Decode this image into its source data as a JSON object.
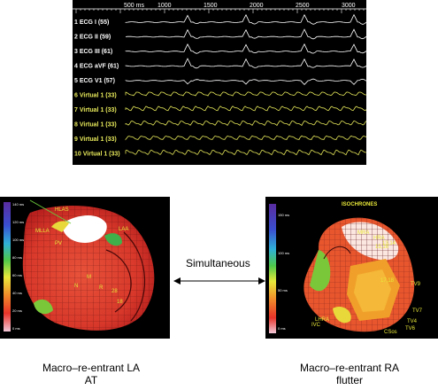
{
  "ecg_panel": {
    "time_axis": {
      "unit_label": "500 ms",
      "ticks": [
        "1000",
        "1500",
        "2000",
        "2500",
        "3000"
      ]
    },
    "channels": [
      {
        "label": "1 ECG I (55)",
        "kind": "ecg"
      },
      {
        "label": "2 ECG II (59)",
        "kind": "ecg"
      },
      {
        "label": "3 ECG III (61)",
        "kind": "ecg"
      },
      {
        "label": "4 ECG aVF (61)",
        "kind": "ecg"
      },
      {
        "label": "5 ECG V1 (57)",
        "kind": "ecg"
      },
      {
        "label": "6 Virtual 1 (33)",
        "kind": "virtual"
      },
      {
        "label": "7 Virtual 1 (33)",
        "kind": "virtual"
      },
      {
        "label": "8 Virtual 1 (33)",
        "kind": "virtual"
      },
      {
        "label": "9 Virtual 1 (33)",
        "kind": "virtual"
      },
      {
        "label": "10 Virtual 1 (33)",
        "kind": "virtual"
      }
    ],
    "colors": {
      "ecg": "#ffffff",
      "virtual": "#e6e85a",
      "ecg_label": "#ffffff",
      "virtual_label": "#e6e85a"
    }
  },
  "left_map": {
    "scale_ticks": [
      "140 ms",
      "120 ms",
      "100 ms",
      "80 ms",
      "60 ms",
      "40 ms",
      "20 ms",
      "0 ms"
    ],
    "labels": [
      "HLAS",
      "MLLA",
      "LAA",
      "PV",
      "N",
      "M",
      "R",
      "28",
      "18"
    ],
    "caption_line1": "Macro–re-entrant LA",
    "caption_line2": "AT"
  },
  "right_map": {
    "title": "ISOCHRONES",
    "scale_ticks": [
      "150 ms",
      "100 ms",
      "50 ms",
      "0 ms"
    ],
    "labels": [
      "MRA",
      "HRA",
      "13,14",
      "15,16",
      "17,18",
      "TV9",
      "TV7",
      "TV4",
      "TV6",
      "CSos",
      "LHRA",
      "IVC"
    ],
    "caption_line1": "Macro–re-entrant RA",
    "caption_line2": "flutter"
  },
  "middle": {
    "label": "Simultaneous"
  }
}
